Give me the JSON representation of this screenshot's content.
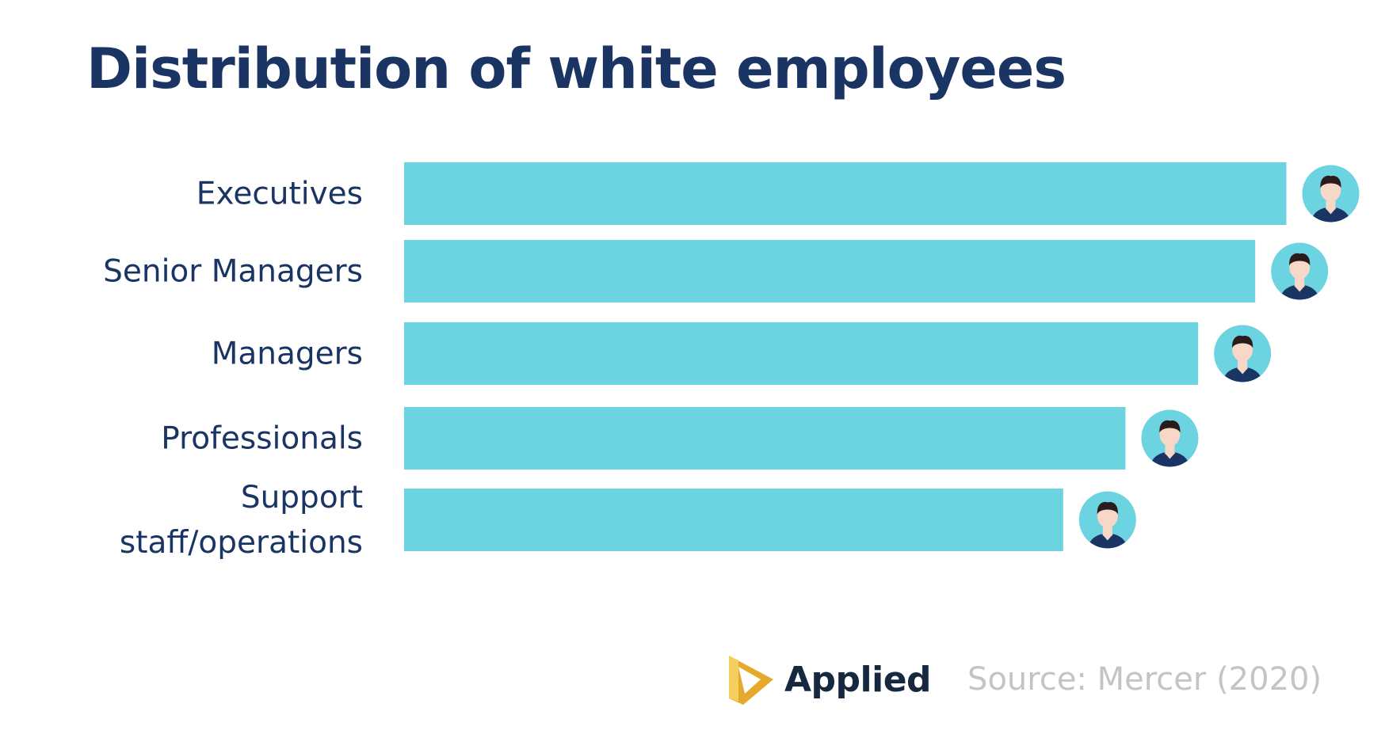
{
  "chart_data": {
    "type": "bar",
    "orientation": "horizontal",
    "title": "Distribution of white employees",
    "categories": [
      "Executives",
      "Senior Managers",
      "Managers",
      "Professionals",
      "Support staff/operations"
    ],
    "category_lines": [
      [
        "Executives"
      ],
      [
        "Senior Managers"
      ],
      [
        "Managers"
      ],
      [
        "Professionals"
      ],
      [
        "Support",
        "staff/operations"
      ]
    ],
    "values": [
      85,
      82,
      76.5,
      69.5,
      63.5
    ],
    "xlim": [
      0,
      100
    ],
    "grid": false,
    "bar_color": "#6cd3e0",
    "marker_icon": "person-avatar-icon"
  },
  "colors": {
    "title": "#1a3464",
    "label": "#1a3464",
    "avatar_bg": "#6cd3e0",
    "avatar_shirt": "#1a3464",
    "avatar_skin": "#f6d7c8",
    "avatar_hair": "#2a1c1c",
    "source": "#c4c4c4",
    "logo_gold": "#f0c23c"
  },
  "footer": {
    "brand": "Applied",
    "brand_icon": "applied-logo-icon",
    "source": "Source: Mercer (2020)"
  }
}
